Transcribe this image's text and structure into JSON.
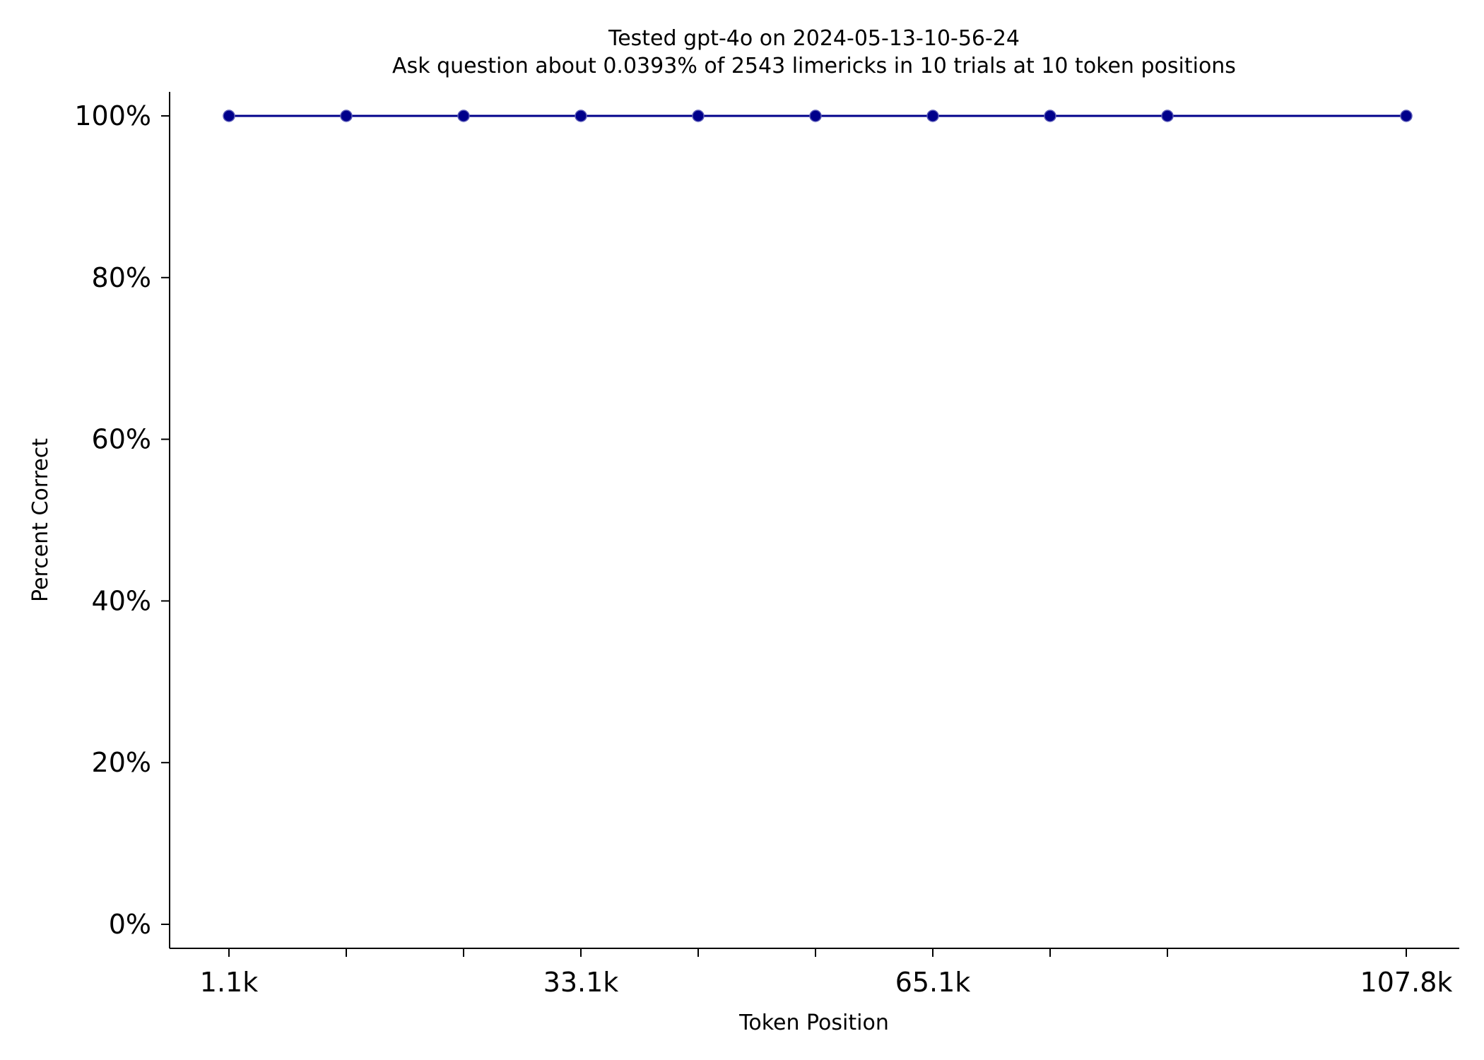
{
  "chart_data": {
    "type": "line",
    "title": "Tested gpt-4o on 2024-05-13-10-56-24",
    "subtitle": "Ask question about 0.0393% of 2543 limericks in 10 trials at 10 token positions",
    "xlabel": "Token Position",
    "ylabel": "Percent Correct",
    "x": [
      1.1,
      11.1,
      21.1,
      33.1,
      43.1,
      53.1,
      65.1,
      75.1,
      85.1,
      107.8
    ],
    "x_tick_labels": [
      "1.1k",
      "",
      "",
      "33.1k",
      "",
      "",
      "65.1k",
      "",
      "",
      "107.8k"
    ],
    "y_ticks": [
      0,
      20,
      40,
      60,
      80,
      100
    ],
    "y_tick_labels": [
      "0%",
      "20%",
      "40%",
      "60%",
      "80%",
      "100%"
    ],
    "ylim": [
      -3,
      103
    ],
    "grid": false,
    "series": [
      {
        "values": [
          100,
          100,
          100,
          100,
          100,
          100,
          100,
          100,
          100,
          100
        ],
        "color": "#00008b"
      }
    ]
  }
}
